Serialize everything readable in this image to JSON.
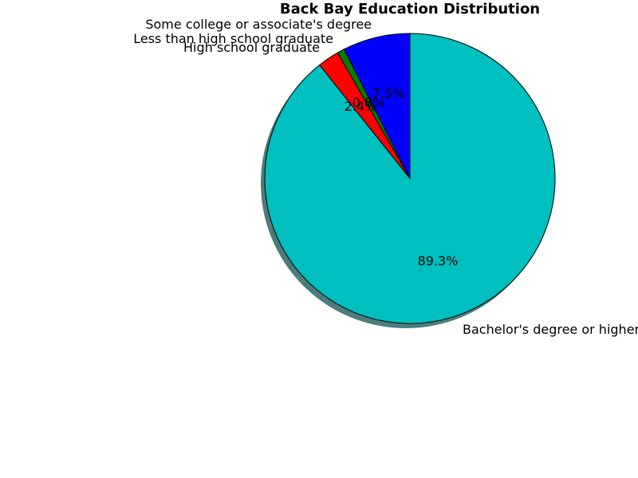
{
  "chart_data": {
    "type": "pie",
    "title": "Back Bay Education Distribution",
    "slices": [
      {
        "label": "Some college or associate's degree",
        "value": 7.5,
        "pct_label": "7.5%",
        "color": "#0000ff"
      },
      {
        "label": "Less than high school graduate",
        "value": 0.8,
        "pct_label": "0.8%",
        "color": "#007f00"
      },
      {
        "label": "High school graduate",
        "value": 2.4,
        "pct_label": "2.4%",
        "color": "#ff0000"
      },
      {
        "label": "Bachelor's degree or higher",
        "value": 89.3,
        "pct_label": "89.3%",
        "color": "#00bfbf"
      }
    ],
    "start_angle_deg": 90,
    "direction": "counterclockwise",
    "shadow": true,
    "shadow_color": "#4d7c7c",
    "edge_color": "#000000"
  }
}
